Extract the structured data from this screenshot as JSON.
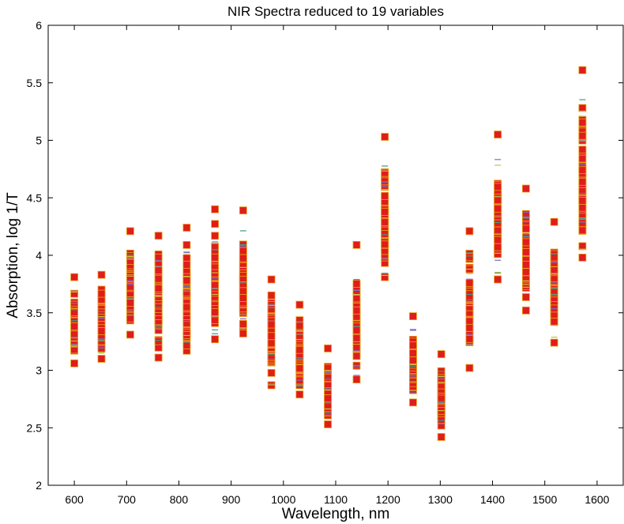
{
  "chart_data": {
    "type": "scatter",
    "title": "NIR Spectra reduced to 19 variables",
    "xlabel": "Wavelength, nm",
    "ylabel": "Absorption, log 1/T",
    "xlim": [
      550,
      1650
    ],
    "ylim": [
      2,
      6
    ],
    "xticks": [
      "600",
      "700",
      "800",
      "900",
      "1000",
      "1100",
      "1200",
      "1300",
      "1400",
      "1500",
      "1600"
    ],
    "yticks": [
      "2",
      "2.5",
      "3",
      "3.5",
      "4",
      "4.5",
      "5",
      "5.5",
      "6"
    ],
    "grid": false,
    "legend": "none",
    "marker": "square",
    "colors": {
      "marker_fill": "#e01c1c",
      "marker_edge": "#e8a21a",
      "marker_inner_alt": [
        "#7a6fc4",
        "#3a9b8a",
        "#c8c040"
      ],
      "axis": "#000000"
    },
    "columns": [
      {
        "x": 600,
        "min": 3.06,
        "max": 3.81,
        "mid": 3.35
      },
      {
        "x": 652,
        "min": 3.1,
        "max": 3.83,
        "mid": 3.38
      },
      {
        "x": 707,
        "min": 3.31,
        "max": 4.21,
        "mid": 3.7
      },
      {
        "x": 761,
        "min": 3.11,
        "max": 4.17,
        "mid": 3.55
      },
      {
        "x": 815,
        "min": 3.17,
        "max": 4.24,
        "mid": 3.6
      },
      {
        "x": 869,
        "min": 3.27,
        "max": 4.4,
        "mid": 3.75
      },
      {
        "x": 923,
        "min": 3.32,
        "max": 4.39,
        "mid": 3.75
      },
      {
        "x": 977,
        "min": 2.87,
        "max": 3.79,
        "mid": 3.25
      },
      {
        "x": 1031,
        "min": 2.79,
        "max": 3.57,
        "mid": 3.1
      },
      {
        "x": 1085,
        "min": 2.53,
        "max": 3.19,
        "mid": 2.8
      },
      {
        "x": 1140,
        "min": 2.92,
        "max": 4.09,
        "mid": 3.35
      },
      {
        "x": 1194,
        "min": 3.81,
        "max": 5.03,
        "mid": 4.25
      },
      {
        "x": 1248,
        "min": 2.72,
        "max": 3.47,
        "mid": 3.0
      },
      {
        "x": 1302,
        "min": 2.42,
        "max": 3.14,
        "mid": 2.7
      },
      {
        "x": 1356,
        "min": 3.02,
        "max": 4.21,
        "mid": 3.45
      },
      {
        "x": 1410,
        "min": 3.79,
        "max": 5.05,
        "mid": 4.3
      },
      {
        "x": 1464,
        "min": 3.52,
        "max": 4.58,
        "mid": 3.95
      },
      {
        "x": 1518,
        "min": 3.24,
        "max": 4.29,
        "mid": 3.7
      },
      {
        "x": 1572,
        "min": 3.98,
        "max": 5.61,
        "mid": 4.6
      }
    ],
    "samples_per_wavelength": 60
  }
}
